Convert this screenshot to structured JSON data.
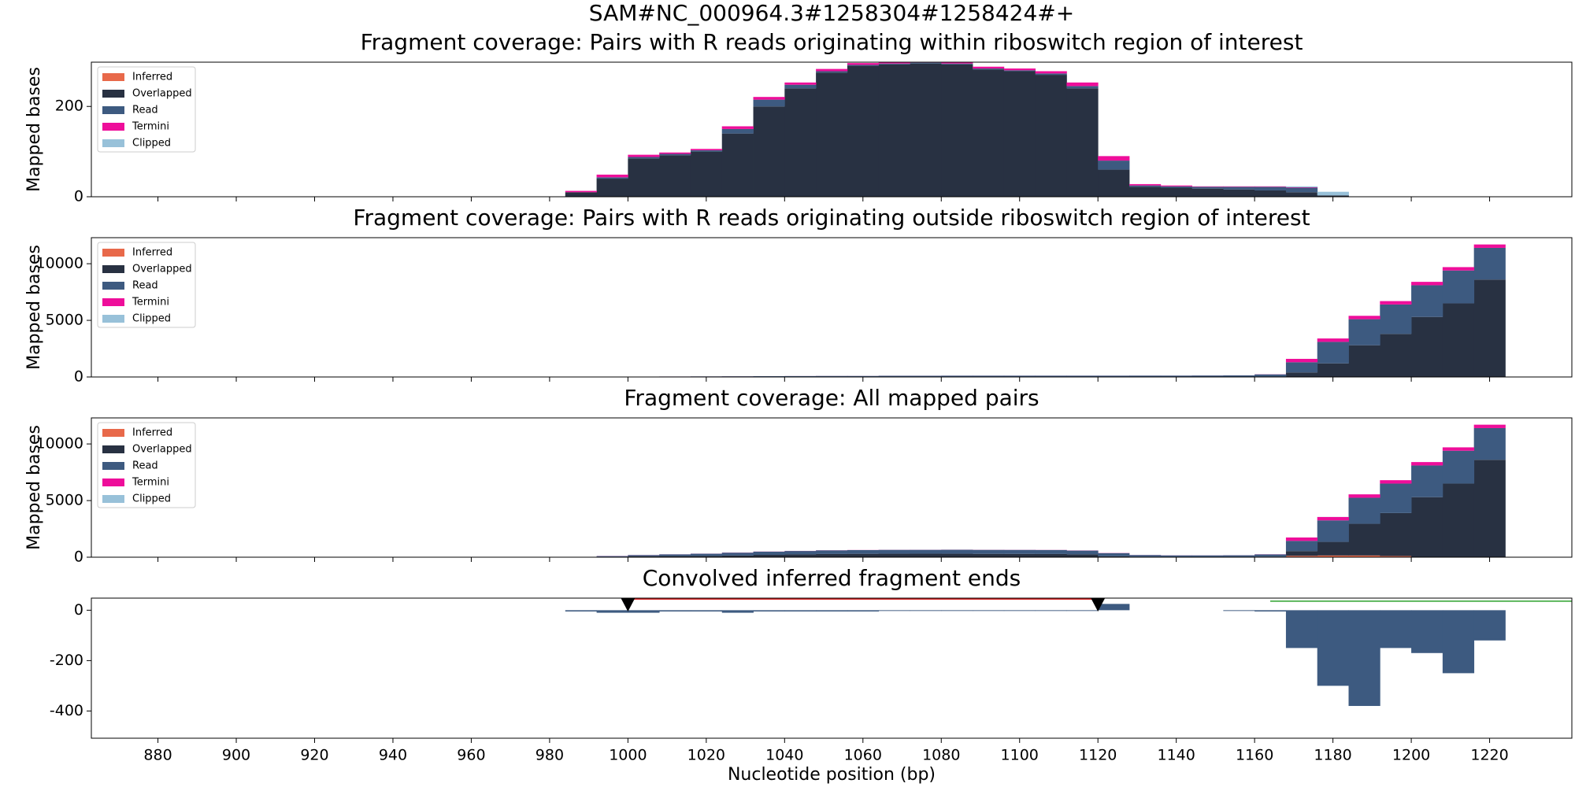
{
  "title": "SAM#NC_000964.3#1258304#1258424#+",
  "chart_data": [
    {
      "type": "step_area",
      "title": "Fragment coverage: Pairs with R reads originating within riboswitch region of interest",
      "ylabel": "Mapped bases",
      "x": [
        984,
        992,
        1000,
        1008,
        1016,
        1024,
        1032,
        1040,
        1048,
        1056,
        1064,
        1072,
        1080,
        1088,
        1096,
        1104,
        1112,
        1120,
        1128,
        1136,
        1144,
        1152,
        1160,
        1168,
        1176,
        1184,
        1192,
        1200,
        1208,
        1216
      ],
      "step": 8,
      "ylim": [
        0,
        298
      ],
      "yticks": [
        0,
        200
      ],
      "legend": "upper left",
      "series": [
        {
          "name": "Inferred",
          "color": "#e8694a",
          "values": [
            0,
            0,
            0,
            0,
            0,
            0,
            0,
            0,
            0,
            0,
            0,
            0,
            0,
            0,
            0,
            0,
            0,
            0,
            0,
            0,
            0,
            0,
            0,
            0,
            0,
            0,
            0,
            0,
            0,
            0
          ]
        },
        {
          "name": "Overlapped",
          "color": "#283142",
          "values": [
            10,
            40,
            85,
            92,
            100,
            140,
            200,
            240,
            275,
            290,
            293,
            295,
            293,
            282,
            278,
            270,
            240,
            60,
            22,
            20,
            18,
            16,
            14,
            10,
            3,
            0,
            0,
            0,
            0,
            0
          ]
        },
        {
          "name": "Read",
          "color": "#3d5a80",
          "values": [
            0,
            3,
            3,
            3,
            3,
            10,
            15,
            8,
            3,
            2,
            2,
            2,
            2,
            2,
            2,
            3,
            5,
            20,
            3,
            3,
            4,
            6,
            8,
            10,
            0,
            0,
            0,
            0,
            0,
            0
          ]
        },
        {
          "name": "Termini",
          "color": "#ee0e9a",
          "values": [
            3,
            6,
            5,
            3,
            3,
            6,
            6,
            5,
            5,
            4,
            3,
            3,
            3,
            4,
            4,
            5,
            8,
            10,
            3,
            2,
            1,
            1,
            1,
            1,
            0,
            0,
            0,
            0,
            0,
            0
          ]
        },
        {
          "name": "Clipped",
          "color": "#98c1d9",
          "values": [
            0,
            0,
            0,
            0,
            0,
            0,
            0,
            0,
            0,
            0,
            0,
            0,
            0,
            0,
            0,
            0,
            0,
            0,
            0,
            0,
            0,
            0,
            0,
            2,
            8,
            0,
            0,
            0,
            0,
            0
          ]
        }
      ]
    },
    {
      "type": "step_area",
      "title": "Fragment coverage: Pairs with R reads originating outside riboswitch region of interest",
      "ylabel": "Mapped bases",
      "x": [
        984,
        992,
        1000,
        1008,
        1016,
        1024,
        1032,
        1040,
        1048,
        1056,
        1064,
        1072,
        1080,
        1088,
        1096,
        1104,
        1112,
        1120,
        1128,
        1136,
        1144,
        1152,
        1160,
        1168,
        1176,
        1184,
        1192,
        1200,
        1208,
        1216
      ],
      "step": 8,
      "ylim": [
        0,
        12300
      ],
      "yticks": [
        0,
        5000,
        10000
      ],
      "legend": "upper left",
      "series": [
        {
          "name": "Inferred",
          "color": "#e8694a",
          "values": [
            0,
            0,
            0,
            0,
            0,
            0,
            0,
            0,
            0,
            0,
            0,
            0,
            0,
            0,
            0,
            0,
            0,
            0,
            0,
            0,
            0,
            0,
            0,
            0,
            0,
            0,
            0,
            0,
            0,
            0
          ]
        },
        {
          "name": "Overlapped",
          "color": "#283142",
          "values": [
            0,
            0,
            5,
            10,
            10,
            10,
            10,
            10,
            10,
            10,
            15,
            15,
            15,
            15,
            15,
            15,
            15,
            15,
            20,
            20,
            20,
            20,
            30,
            400,
            1200,
            2800,
            3800,
            5300,
            6500,
            8600
          ]
        },
        {
          "name": "Read",
          "color": "#3d5a80",
          "values": [
            0,
            10,
            20,
            30,
            40,
            50,
            60,
            70,
            80,
            80,
            90,
            90,
            100,
            100,
            100,
            100,
            100,
            100,
            100,
            100,
            110,
            120,
            200,
            900,
            1900,
            2300,
            2600,
            2800,
            2900,
            2800
          ]
        },
        {
          "name": "Termini",
          "color": "#ee0e9a",
          "values": [
            0,
            2,
            2,
            2,
            2,
            3,
            3,
            3,
            3,
            3,
            3,
            3,
            3,
            3,
            3,
            3,
            3,
            3,
            3,
            3,
            3,
            3,
            10,
            300,
            300,
            300,
            300,
            300,
            300,
            300
          ]
        },
        {
          "name": "Clipped",
          "color": "#98c1d9",
          "values": [
            0,
            0,
            0,
            0,
            0,
            0,
            0,
            0,
            0,
            0,
            0,
            0,
            0,
            0,
            0,
            0,
            0,
            0,
            0,
            0,
            0,
            0,
            0,
            0,
            0,
            0,
            0,
            0,
            0,
            0
          ]
        }
      ]
    },
    {
      "type": "step_area",
      "title": "Fragment coverage: All mapped pairs",
      "ylabel": "Mapped bases",
      "x": [
        984,
        992,
        1000,
        1008,
        1016,
        1024,
        1032,
        1040,
        1048,
        1056,
        1064,
        1072,
        1080,
        1088,
        1096,
        1104,
        1112,
        1120,
        1128,
        1136,
        1144,
        1152,
        1160,
        1168,
        1176,
        1184,
        1192,
        1200,
        1208,
        1216
      ],
      "step": 8,
      "ylim": [
        0,
        12300
      ],
      "yticks": [
        0,
        5000,
        10000
      ],
      "legend": "upper left",
      "series": [
        {
          "name": "Inferred",
          "color": "#e8694a",
          "values": [
            0,
            0,
            0,
            0,
            0,
            0,
            0,
            0,
            0,
            0,
            0,
            0,
            0,
            0,
            0,
            0,
            0,
            0,
            0,
            0,
            0,
            0,
            0,
            120,
            150,
            150,
            100,
            0,
            0,
            0
          ]
        },
        {
          "name": "Overlapped",
          "color": "#283142",
          "values": [
            10,
            40,
            90,
            100,
            110,
            150,
            210,
            250,
            285,
            300,
            308,
            310,
            308,
            297,
            293,
            285,
            255,
            80,
            40,
            40,
            40,
            40,
            45,
            420,
            1200,
            2800,
            3800,
            5300,
            6500,
            8600
          ]
        },
        {
          "name": "Read",
          "color": "#3d5a80",
          "values": [
            20,
            60,
            100,
            150,
            200,
            250,
            280,
            300,
            320,
            330,
            340,
            340,
            350,
            350,
            350,
            350,
            330,
            280,
            150,
            120,
            120,
            130,
            200,
            900,
            1900,
            2300,
            2600,
            2800,
            2900,
            2800
          ]
        },
        {
          "name": "Termini",
          "color": "#ee0e9a",
          "values": [
            3,
            8,
            7,
            5,
            5,
            9,
            9,
            8,
            8,
            7,
            6,
            6,
            6,
            7,
            7,
            8,
            11,
            13,
            6,
            5,
            4,
            4,
            11,
            300,
            300,
            300,
            300,
            300,
            300,
            300
          ]
        },
        {
          "name": "Clipped",
          "color": "#98c1d9",
          "values": [
            0,
            0,
            0,
            0,
            0,
            0,
            0,
            0,
            0,
            0,
            0,
            0,
            0,
            0,
            0,
            0,
            0,
            0,
            0,
            0,
            0,
            0,
            0,
            2,
            8,
            0,
            0,
            0,
            0,
            0
          ]
        }
      ]
    },
    {
      "type": "bar",
      "title": "Convolved inferred fragment ends",
      "xlabel": "Nucleotide position (bp)",
      "x": [
        984,
        992,
        1000,
        1008,
        1016,
        1024,
        1032,
        1040,
        1048,
        1056,
        1064,
        1072,
        1080,
        1088,
        1096,
        1104,
        1112,
        1120,
        1128,
        1136,
        1144,
        1152,
        1160,
        1168,
        1176,
        1184,
        1192,
        1200,
        1208,
        1216
      ],
      "step": 8,
      "color": "#3d5a80",
      "values": [
        -5,
        -10,
        -10,
        -5,
        -5,
        -10,
        -5,
        -5,
        -5,
        -5,
        -3,
        -3,
        -3,
        -3,
        -3,
        -3,
        -3,
        25,
        0,
        0,
        0,
        -3,
        -5,
        -150,
        -300,
        -380,
        -150,
        -170,
        -250,
        -120
      ],
      "xlim": [
        863,
        1241
      ],
      "xticks": [
        880,
        900,
        920,
        940,
        960,
        980,
        1000,
        1020,
        1040,
        1060,
        1080,
        1100,
        1120,
        1140,
        1160,
        1180,
        1200,
        1220
      ],
      "ylim": [
        -508,
        48
      ],
      "yticks": [
        -400,
        -200,
        0
      ],
      "markers": {
        "x": [
          1000,
          1120
        ],
        "y": [
          20,
          20
        ]
      },
      "segments": [
        {
          "x": [
            1000,
            1120
          ],
          "y": [
            44,
            44
          ],
          "color": "#d62728"
        },
        {
          "x": [
            1164,
            1241
          ],
          "y": [
            36,
            36
          ],
          "color": "#2ca02c"
        }
      ]
    }
  ]
}
